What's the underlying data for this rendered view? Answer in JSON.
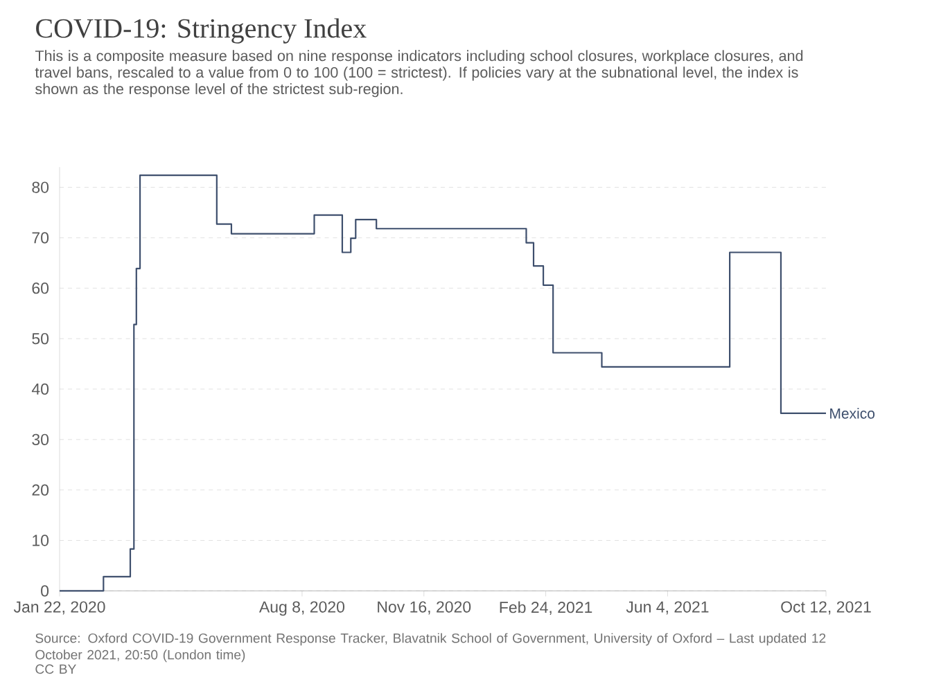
{
  "chart_data": {
    "type": "step",
    "title": "COVID-19: Stringency Index",
    "subtitle": "This is a composite measure based on nine response indicators including school closures, workplace closures, and travel bans, rescaled to a value from 0 to 100 (100 = strictest). If policies vary at the subnational level, the index is shown as the response level of the strictest sub-region.",
    "x": [
      "2020-01-22",
      "2020-02-27",
      "2020-03-20",
      "2020-03-23",
      "2020-03-25",
      "2020-03-28",
      "2020-05-30",
      "2020-06-11",
      "2020-08-18",
      "2020-09-10",
      "2020-09-17",
      "2020-09-21",
      "2020-10-08",
      "2021-02-08",
      "2021-02-14",
      "2021-02-22",
      "2021-03-02",
      "2021-04-11",
      "2021-07-25",
      "2021-09-05",
      "2021-10-12"
    ],
    "series": [
      {
        "name": "Mexico",
        "color": "#3e4f6d",
        "values": [
          0,
          2.8,
          8.3,
          52.8,
          63.9,
          82.4,
          72.7,
          70.8,
          74.5,
          67.1,
          69.9,
          73.6,
          71.8,
          69.0,
          64.4,
          60.6,
          47.2,
          44.4,
          67.1,
          35.2,
          35.2
        ]
      }
    ],
    "xlim": [
      "2020-01-22",
      "2021-10-12"
    ],
    "xticks": [
      {
        "value": "2020-01-22",
        "label": "Jan 22, 2020"
      },
      {
        "value": "2020-08-08",
        "label": "Aug 8, 2020"
      },
      {
        "value": "2020-11-16",
        "label": "Nov 16, 2020"
      },
      {
        "value": "2021-02-24",
        "label": "Feb 24, 2021"
      },
      {
        "value": "2021-06-04",
        "label": "Jun 4, 2021"
      },
      {
        "value": "2021-10-12",
        "label": "Oct 12, 2021"
      }
    ],
    "ylim": [
      0,
      84
    ],
    "yticks": [
      0,
      10,
      20,
      30,
      40,
      50,
      60,
      70,
      80
    ],
    "grid": "y",
    "annotations": [
      "Source: Oxford COVID-19 Government Response Tracker, Blavatnik School of Government, University of Oxford – Last updated 12 October 2021, 20:50 (London time)",
      "CC BY"
    ]
  }
}
